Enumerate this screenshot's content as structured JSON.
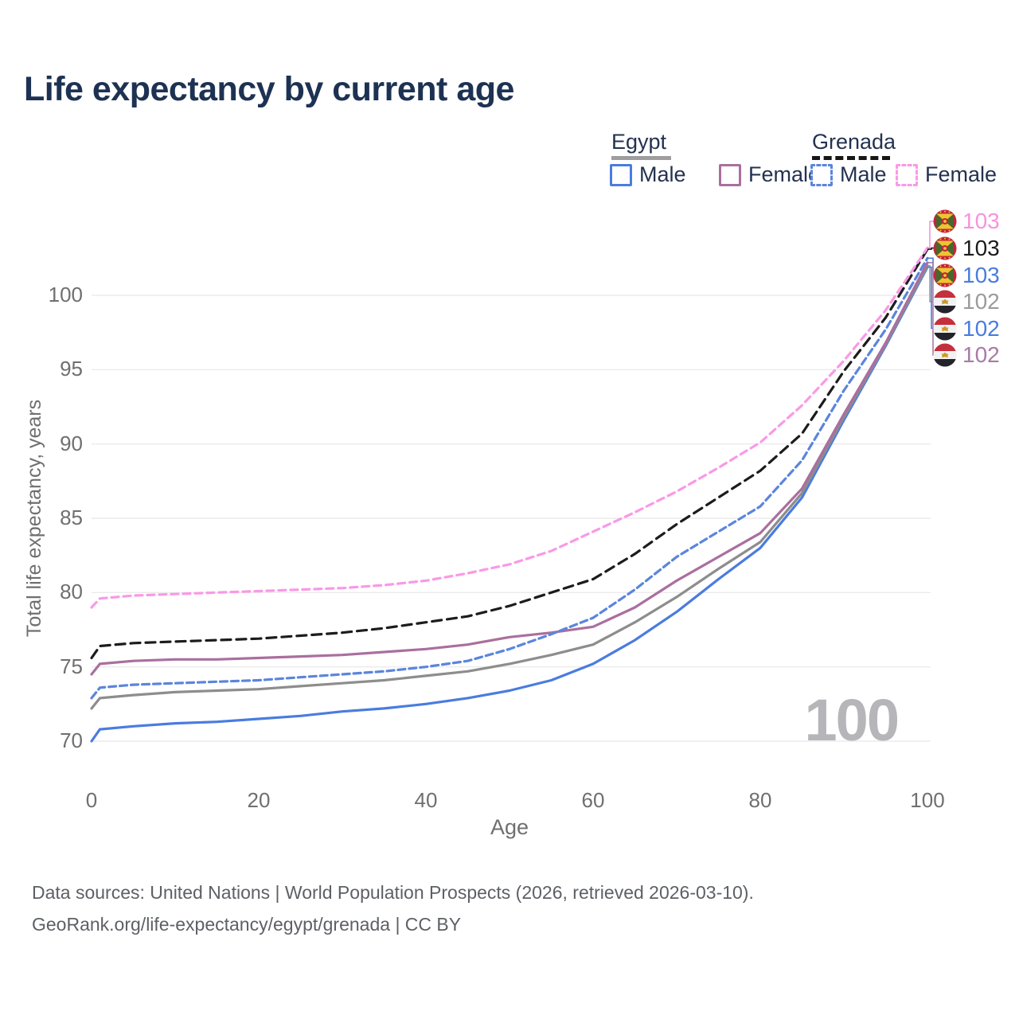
{
  "title": "Life expectancy by current age",
  "legend": {
    "groups": [
      {
        "label": "Egypt",
        "line_style": "solid",
        "underline_color": "#9e9e9e",
        "items": [
          {
            "label": "Male",
            "color": "#4a7cdf",
            "dashed": false
          },
          {
            "label": "Female",
            "color": "#aa6f9e",
            "dashed": false
          }
        ]
      },
      {
        "label": "Grenada",
        "line_style": "dashed",
        "underline_color": "#161616",
        "items": [
          {
            "label": "Male",
            "color": "#5b85dd",
            "dashed": true
          },
          {
            "label": "Female",
            "color": "#fa99e6",
            "dashed": true
          }
        ]
      }
    ]
  },
  "chart_data": {
    "type": "line",
    "title": "Life expectancy by current age",
    "xlabel": "Age",
    "ylabel": "Total life expectancy, years",
    "xlim": [
      0,
      100
    ],
    "ylim": [
      70,
      100
    ],
    "x_ticks": [
      0,
      20,
      40,
      60,
      80,
      100
    ],
    "y_ticks": [
      70,
      75,
      80,
      85,
      90,
      95,
      100
    ],
    "grid": "horizontal",
    "legend_position": "top-right",
    "age_counter": "100",
    "x": [
      0,
      1,
      5,
      10,
      15,
      20,
      25,
      30,
      35,
      40,
      45,
      50,
      55,
      60,
      65,
      70,
      75,
      80,
      85,
      90,
      95,
      100
    ],
    "series": [
      {
        "name": "Egypt Male",
        "country": "Egypt",
        "sex": "Male",
        "color": "#4a7cdf",
        "dash": null,
        "values": [
          70.0,
          70.8,
          71.0,
          71.2,
          71.3,
          71.5,
          71.7,
          72.0,
          72.2,
          72.5,
          72.9,
          73.4,
          74.1,
          75.2,
          76.8,
          78.7,
          80.9,
          83.0,
          86.4,
          91.6,
          96.6,
          101.9
        ]
      },
      {
        "name": "Egypt Both sexes",
        "country": "Egypt",
        "sex": "Both",
        "color": "#8d8d8d",
        "dash": null,
        "values": [
          72.2,
          72.9,
          73.1,
          73.3,
          73.4,
          73.5,
          73.7,
          73.9,
          74.1,
          74.4,
          74.7,
          75.2,
          75.8,
          76.5,
          78.0,
          79.7,
          81.6,
          83.4,
          86.7,
          91.8,
          96.7,
          102.0
        ]
      },
      {
        "name": "Egypt Female",
        "country": "Egypt",
        "sex": "Female",
        "color": "#aa6f9e",
        "dash": null,
        "values": [
          74.5,
          75.2,
          75.4,
          75.5,
          75.5,
          75.6,
          75.7,
          75.8,
          76.0,
          76.2,
          76.5,
          77.0,
          77.3,
          77.7,
          79.0,
          80.8,
          82.4,
          84.0,
          87.0,
          92.0,
          96.8,
          102.2
        ]
      },
      {
        "name": "Grenada Male",
        "country": "Grenada",
        "sex": "Male",
        "color": "#5b85dd",
        "dash": "9 5",
        "values": [
          72.9,
          73.6,
          73.8,
          73.9,
          74.0,
          74.1,
          74.3,
          74.5,
          74.7,
          75.0,
          75.4,
          76.2,
          77.2,
          78.3,
          80.2,
          82.4,
          84.1,
          85.8,
          88.9,
          93.6,
          97.7,
          102.5
        ]
      },
      {
        "name": "Grenada Both sexes",
        "country": "Grenada",
        "sex": "Both",
        "color": "#1c1c1c",
        "dash": "12 7",
        "values": [
          75.6,
          76.4,
          76.6,
          76.7,
          76.8,
          76.9,
          77.1,
          77.3,
          77.6,
          78.0,
          78.4,
          79.1,
          80.0,
          80.9,
          82.6,
          84.6,
          86.4,
          88.2,
          90.7,
          94.9,
          98.5,
          103.1
        ]
      },
      {
        "name": "Grenada Female",
        "country": "Grenada",
        "sex": "Female",
        "color": "#fa99e6",
        "dash": "9 6",
        "values": [
          79.0,
          79.6,
          79.8,
          79.9,
          80.0,
          80.1,
          80.2,
          80.3,
          80.5,
          80.8,
          81.3,
          81.9,
          82.8,
          84.1,
          85.4,
          86.8,
          88.4,
          90.1,
          92.6,
          95.6,
          99.0,
          103.2
        ]
      }
    ]
  },
  "end_labels": [
    {
      "text": "103",
      "flag": "grenada",
      "series": 5,
      "color": "#f793dd"
    },
    {
      "text": "103",
      "flag": "grenada",
      "series": 4,
      "color": "#1c1c1c"
    },
    {
      "text": "103",
      "flag": "grenada",
      "series": 3,
      "color": "#4a7cdf"
    },
    {
      "text": "102",
      "flag": "egypt",
      "series": 1,
      "color": "#9b9b9b"
    },
    {
      "text": "102",
      "flag": "egypt",
      "series": 0,
      "color": "#4a7cdf"
    },
    {
      "text": "102",
      "flag": "egypt",
      "series": 2,
      "color": "#a87ba4"
    }
  ],
  "footer": {
    "line1": "Data sources: United Nations | World Population Prospects (2026, retrieved 2026-03-10).",
    "line2": "GeoRank.org/life-expectancy/egypt/grenada | CC BY"
  }
}
